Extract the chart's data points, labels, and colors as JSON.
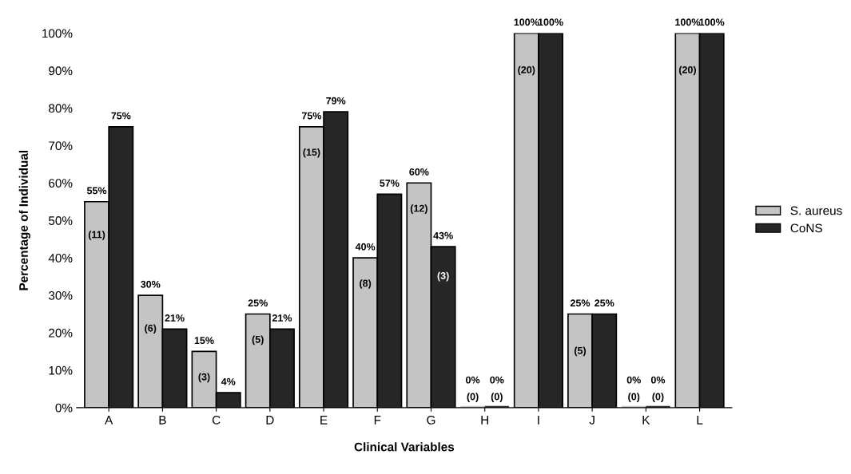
{
  "chart_data": {
    "type": "bar",
    "xlabel": "Clinical Variables",
    "ylabel": "Percentage of Individual",
    "categories": [
      "A",
      "B",
      "C",
      "D",
      "E",
      "F",
      "G",
      "H",
      "I",
      "J",
      "K",
      "L"
    ],
    "series": [
      {
        "name": "S. aureus",
        "color": "#c4c4c4",
        "values": [
          55,
          30,
          15,
          25,
          75,
          40,
          60,
          0,
          100,
          25,
          0,
          100
        ],
        "value_labels": [
          "55%",
          "30%",
          "15%",
          "25%",
          "75%",
          "40%",
          "60%",
          "0%",
          "100%",
          "25%",
          "0%",
          "100%"
        ]
      },
      {
        "name": "CoNS",
        "color": "#262626",
        "values": [
          75,
          21,
          4,
          21,
          79,
          57,
          43,
          0,
          100,
          25,
          0,
          100
        ],
        "value_labels": [
          "75%",
          "21%",
          "4%",
          "21%",
          "79%",
          "57%",
          "43%",
          "0%",
          "100%",
          "25%",
          "0%",
          "100%"
        ]
      }
    ],
    "annotations": [
      {
        "text": "(11)",
        "x": "A",
        "y": 46
      },
      {
        "text": "(6)",
        "x": "B",
        "y": 21
      },
      {
        "text": "(3)",
        "x": "C",
        "y": 8
      },
      {
        "text": "(5)",
        "x": "D",
        "y": 18
      },
      {
        "text": "(15)",
        "x": "E",
        "y": 68
      },
      {
        "text": "(8)",
        "x": "F",
        "y": 33
      },
      {
        "text": "(12)",
        "x": "G",
        "y": 53
      },
      {
        "text": "(3)",
        "x": "G",
        "y": 35
      },
      {
        "text": "(0)",
        "x": "H",
        "y": 0
      },
      {
        "text": "(0)",
        "x": "H",
        "y": 0
      },
      {
        "text": "(20)",
        "x": "I",
        "y": 90
      },
      {
        "text": "(5)",
        "x": "J",
        "y": 15
      },
      {
        "text": "(0)",
        "x": "K",
        "y": 0
      },
      {
        "text": "(0)",
        "x": "K",
        "y": 0
      },
      {
        "text": "(20)",
        "x": "L",
        "y": 90
      }
    ],
    "ylim": [
      0,
      100
    ],
    "yticks": [
      {
        "value": 0,
        "label": "0%"
      },
      {
        "value": 10,
        "label": "10%"
      },
      {
        "value": 20,
        "label": "20%"
      },
      {
        "value": 30,
        "label": "30%"
      },
      {
        "value": 40,
        "label": "40%"
      },
      {
        "value": 50,
        "label": "50%"
      },
      {
        "value": 60,
        "label": "60%"
      },
      {
        "value": 70,
        "label": "70%"
      },
      {
        "value": 80,
        "label": "80%"
      },
      {
        "value": 90,
        "label": "90%"
      },
      {
        "value": 100,
        "label": "100%"
      }
    ],
    "grid": false,
    "legend": "right"
  }
}
